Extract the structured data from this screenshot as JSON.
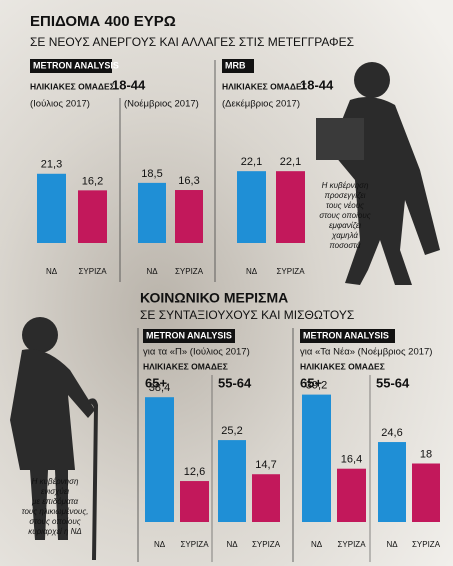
{
  "sections": [
    {
      "title": "ΕΠΙΔΟΜΑ 400 ΕΥΡΩ",
      "subtitle": "ΣΕ ΝΕΟΥΣ ΑΝΕΡΓΟΥΣ ΚΑΙ ΑΛΛΑΓΕΣ ΣΤΙΣ ΜΕΤΕΓΓΡΑΦΕΣ",
      "annotation": [
        "Η κυβέρνηση",
        "προσεγγίζει",
        "τους νέους",
        "στους οποίους",
        "εμφανίζει",
        "χαμηλά",
        "ποσοστά"
      ]
    },
    {
      "title": "ΚΟΙΝΩΝΙΚΟ ΜΕΡΙΣΜΑ",
      "subtitle": "ΣΕ ΣΥΝΤΑΞΙΟΥΧΟΥΣ ΚΑΙ ΜΙΣΘΩΤΟΥΣ",
      "annotation": [
        "Η κυβέρνηση",
        "ενισχύει",
        "με επιδόματα",
        "τους ηλικιωμένους,",
        "στους οποίους",
        "κυριαρχεί η ΝΔ"
      ]
    }
  ],
  "panels": [
    {
      "source": "METRON ANALYSIS",
      "group_label": "ΗΛΙΚΙΑΚΕΣ ΟΜΑΔΕΣ",
      "age_range": "18-44"
    },
    {
      "source": "MRB",
      "group_label": "ΗΛΙΚΙΑΚΕΣ ΟΜΑΔΕΣ",
      "age_range": "18-44"
    },
    {
      "source": "METRON ANALYSIS",
      "note": "για τα «Π» (Ιούλιος 2017)",
      "group_label": "ΗΛΙΚΙΑΚΕΣ ΟΜΑΔΕΣ"
    },
    {
      "source": "METRON ANALYSIS",
      "note": "για «Τα Νέα» (Νοέμβριος 2017)",
      "group_label": "ΗΛΙΚΙΑΚΕΣ ΟΜΑΔΕΣ"
    }
  ],
  "chart_data": [
    {
      "type": "bar",
      "title": "(Ιούλιος 2017)",
      "categories": [
        "ΝΔ",
        "ΣΥΡΙΖΑ"
      ],
      "values": [
        21.3,
        16.2
      ],
      "value_labels": [
        "21,3",
        "16,2"
      ],
      "colors": [
        "#1f8fd6",
        "#c2185b"
      ]
    },
    {
      "type": "bar",
      "title": "(Νοέμβριος 2017)",
      "categories": [
        "ΝΔ",
        "ΣΥΡΙΖΑ"
      ],
      "values": [
        18.5,
        16.3
      ],
      "value_labels": [
        "18,5",
        "16,3"
      ],
      "colors": [
        "#1f8fd6",
        "#c2185b"
      ]
    },
    {
      "type": "bar",
      "title": "(Δεκέμβριος 2017)",
      "categories": [
        "ΝΔ",
        "ΣΥΡΙΖΑ"
      ],
      "values": [
        22.1,
        22.1
      ],
      "value_labels": [
        "22,1",
        "22,1"
      ],
      "colors": [
        "#1f8fd6",
        "#c2185b"
      ]
    },
    {
      "type": "bar",
      "title": "65+",
      "categories": [
        "ΝΔ",
        "ΣΥΡΙΖΑ"
      ],
      "values": [
        38.4,
        12.6
      ],
      "value_labels": [
        "38,4",
        "12,6"
      ],
      "colors": [
        "#1f8fd6",
        "#c2185b"
      ]
    },
    {
      "type": "bar",
      "title": "55-64",
      "categories": [
        "ΝΔ",
        "ΣΥΡΙΖΑ"
      ],
      "values": [
        25.2,
        14.7
      ],
      "value_labels": [
        "25,2",
        "14,7"
      ],
      "colors": [
        "#1f8fd6",
        "#c2185b"
      ]
    },
    {
      "type": "bar",
      "title": "65+",
      "categories": [
        "ΝΔ",
        "ΣΥΡΙΖΑ"
      ],
      "values": [
        39.2,
        16.4
      ],
      "value_labels": [
        "39,2",
        "16,4"
      ],
      "colors": [
        "#1f8fd6",
        "#c2185b"
      ]
    },
    {
      "type": "bar",
      "title": "55-64",
      "categories": [
        "ΝΔ",
        "ΣΥΡΙΖΑ"
      ],
      "values": [
        24.6,
        18
      ],
      "value_labels": [
        "24,6",
        "18"
      ],
      "colors": [
        "#1f8fd6",
        "#c2185b"
      ]
    }
  ]
}
